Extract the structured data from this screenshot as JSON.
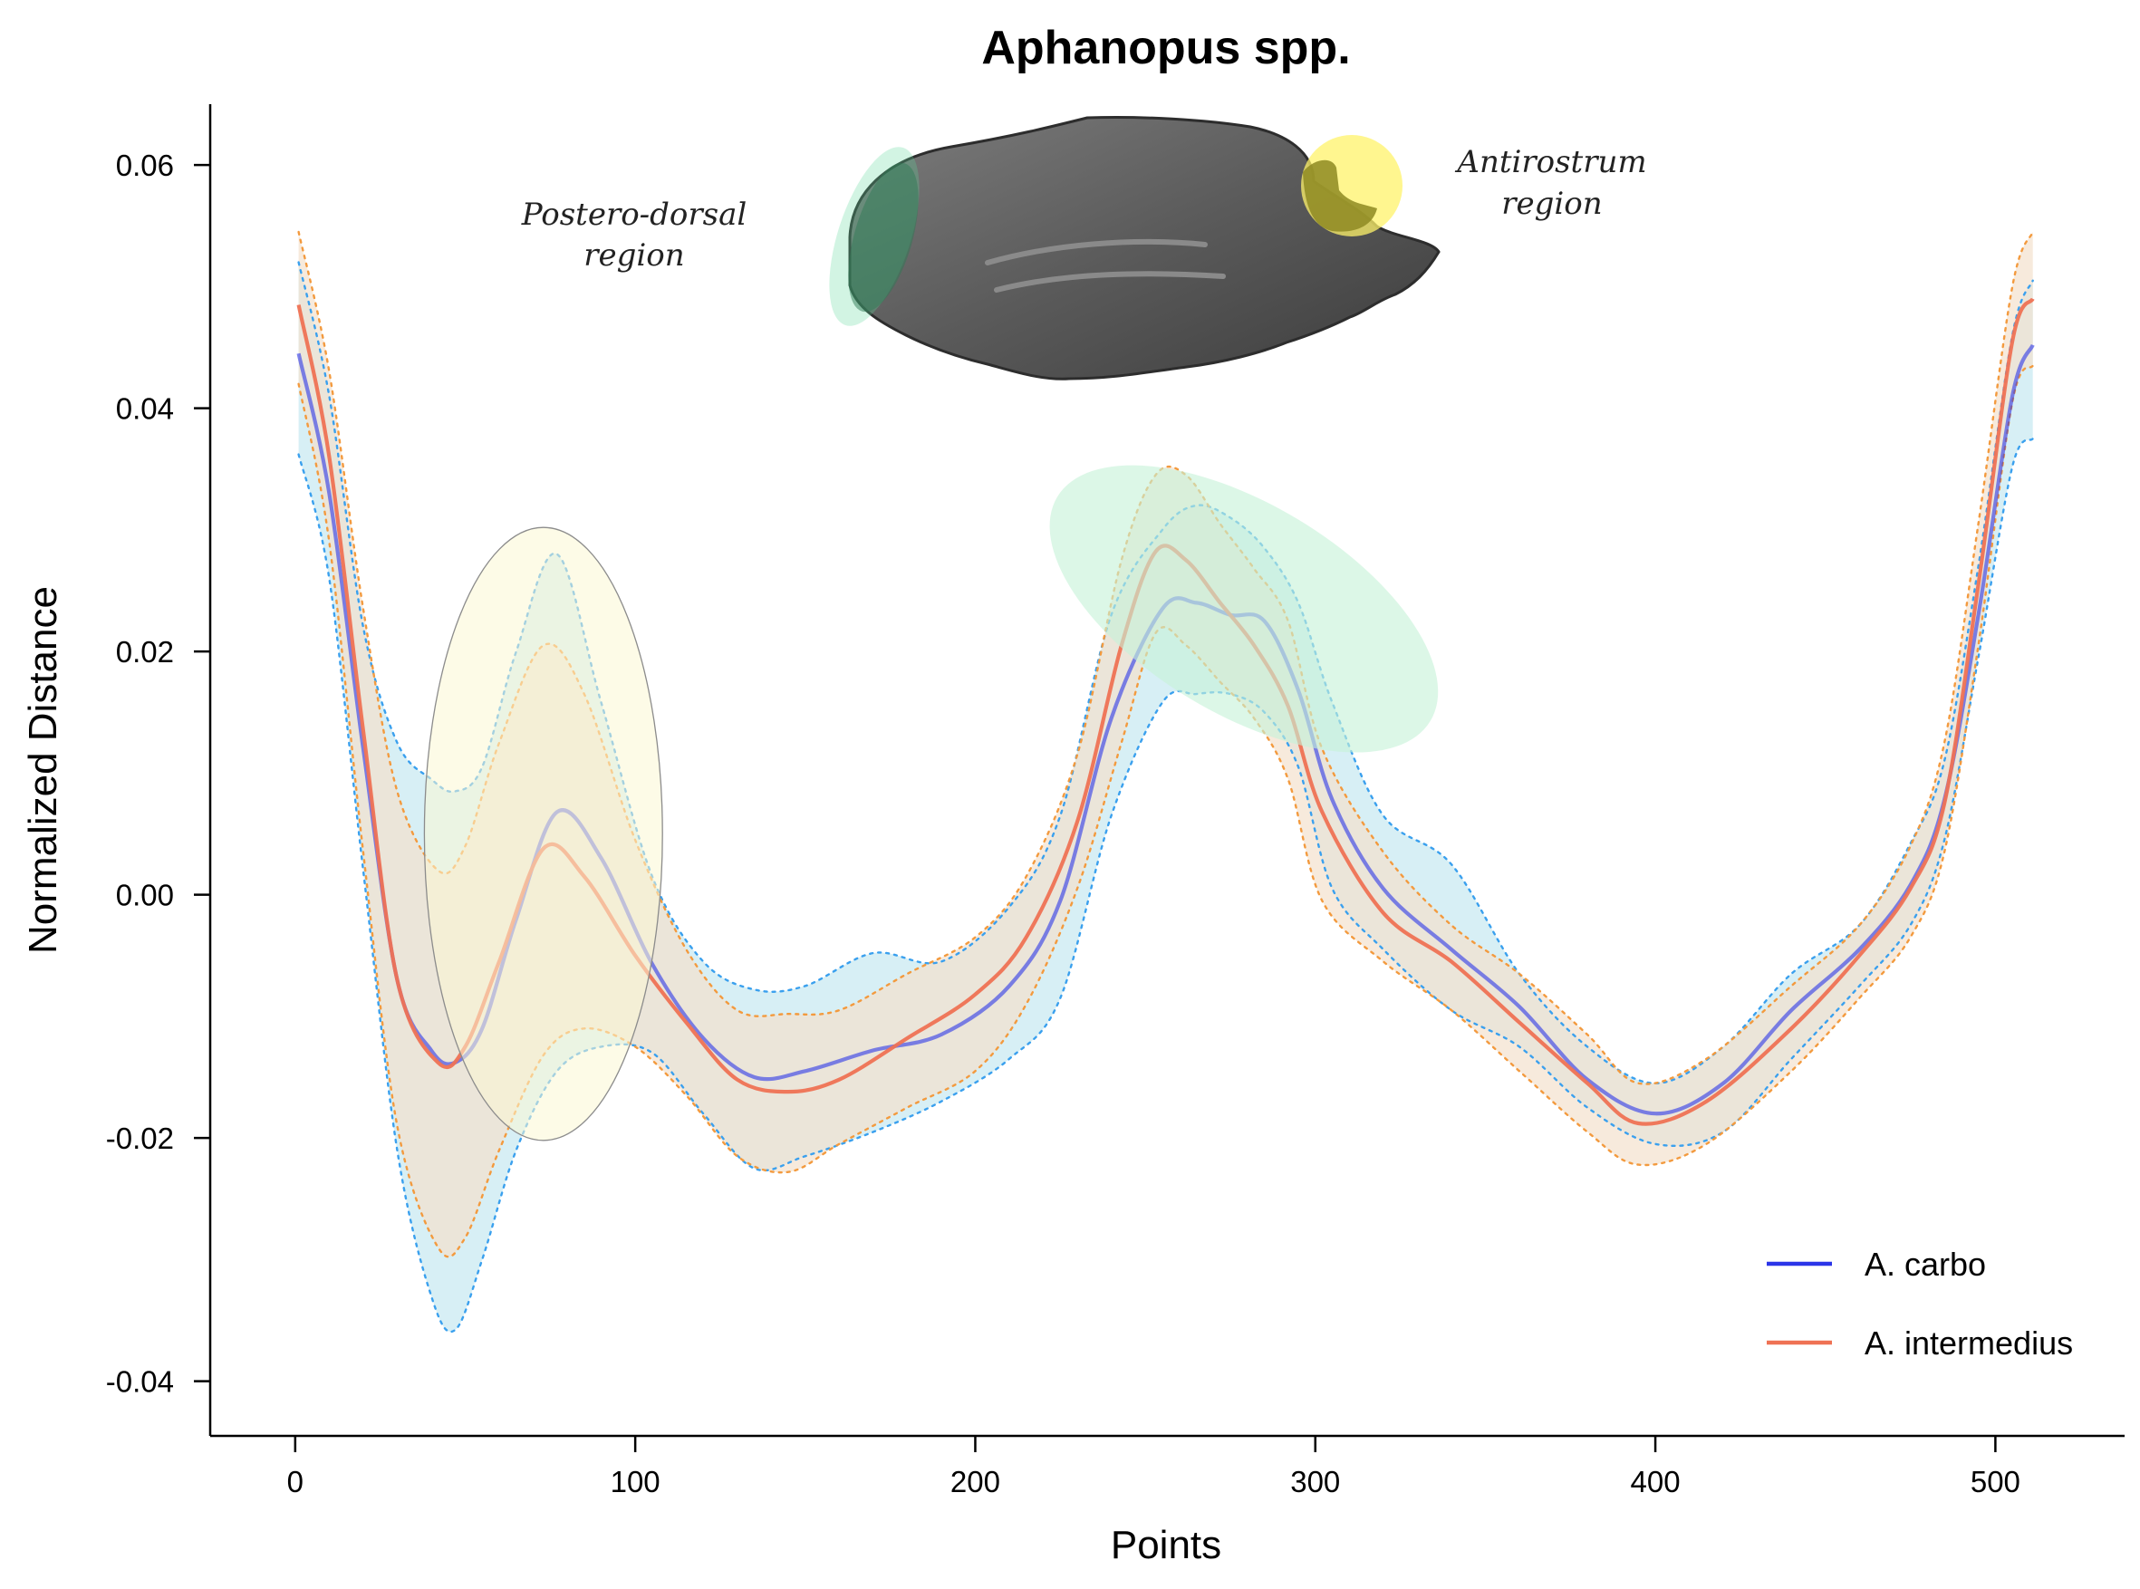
{
  "chart_data": {
    "type": "line",
    "title": "Aphanopus spp.",
    "xlabel": "Points",
    "ylabel": "Normalized Distance",
    "xlim": [
      -25,
      538
    ],
    "ylim": [
      -0.0445,
      0.065
    ],
    "x_ticks": [
      0,
      100,
      200,
      300,
      400,
      500
    ],
    "x_tick_labels": [
      "0",
      "100",
      "200",
      "300",
      "400",
      "500"
    ],
    "y_ticks": [
      -0.04,
      -0.02,
      0.0,
      0.02,
      0.04,
      0.06
    ],
    "y_tick_labels": [
      "-0.04",
      "-0.02",
      "0.00",
      "0.02",
      "0.04",
      "0.06"
    ],
    "grid": false,
    "legend_position": "bottom-right",
    "annotations": [
      {
        "text": "Postero-dorsal\nregion",
        "lines": [
          "Postero-dorsal",
          "region"
        ]
      },
      {
        "text": "Antirostrum\nregion",
        "lines": [
          "Antirostrum",
          "region"
        ]
      }
    ],
    "highlight_regions": [
      {
        "name": "postero-dorsal-highlight",
        "color": "#fbf8d4",
        "cx": 73,
        "cy": 0.005,
        "rx": 35,
        "ry": 0.0252,
        "rotation": 0
      },
      {
        "name": "mid-region-highlight",
        "color": "#c6f2d9",
        "cx": 279,
        "cy": 0.0235,
        "rx": 64,
        "ry": 0.0086,
        "rotation": 31
      }
    ],
    "series": [
      {
        "name": "A. carbo",
        "color": "#2b35e8",
        "ribbon_color": "#c9eaf1",
        "x": [
          1,
          10,
          20,
          30,
          40,
          47,
          55,
          65,
          77,
          90,
          105,
          120,
          135,
          150,
          170,
          190,
          210,
          225,
          240,
          255,
          265,
          275,
          285,
          295,
          305,
          320,
          340,
          360,
          380,
          400,
          420,
          440,
          460,
          475,
          485,
          495,
          505,
          511
        ],
        "y": [
          0.0445,
          0.033,
          0.012,
          -0.007,
          -0.0128,
          -0.0138,
          -0.011,
          -0.002,
          0.0068,
          0.003,
          -0.0057,
          -0.0118,
          -0.015,
          -0.0145,
          -0.0128,
          -0.0115,
          -0.0075,
          -0.0005,
          0.0145,
          0.0235,
          0.024,
          0.023,
          0.0225,
          0.0168,
          0.0078,
          0.0005,
          -0.0045,
          -0.0092,
          -0.0152,
          -0.018,
          -0.0155,
          -0.0095,
          -0.0045,
          0.0008,
          0.0078,
          0.023,
          0.041,
          0.0452
        ],
        "upper": [
          0.052,
          0.041,
          0.022,
          0.0125,
          0.0095,
          0.0085,
          0.0105,
          0.02,
          0.028,
          0.0158,
          0.0015,
          -0.0055,
          -0.0078,
          -0.0075,
          -0.0048,
          -0.0055,
          -0.001,
          0.0065,
          0.023,
          0.03,
          0.032,
          0.031,
          0.0285,
          0.024,
          0.0158,
          0.0065,
          0.0025,
          -0.0065,
          -0.0125,
          -0.0155,
          -0.0125,
          -0.0065,
          -0.0025,
          0.0042,
          0.011,
          0.027,
          0.046,
          0.0505
        ],
        "lower": [
          0.0362,
          0.026,
          0.002,
          -0.021,
          -0.033,
          -0.0358,
          -0.03,
          -0.021,
          -0.0145,
          -0.0125,
          -0.013,
          -0.018,
          -0.0225,
          -0.0215,
          -0.0195,
          -0.017,
          -0.0135,
          -0.0085,
          0.0065,
          0.0158,
          0.0165,
          0.0165,
          0.015,
          0.0105,
          0.0005,
          -0.0045,
          -0.0095,
          -0.0125,
          -0.0175,
          -0.0205,
          -0.0195,
          -0.0135,
          -0.0075,
          -0.0025,
          0.0045,
          0.0195,
          0.0352,
          0.0375
        ]
      },
      {
        "name": "A. intermedius",
        "color": "#ef7254",
        "ribbon_color": "#f3e1cd",
        "x": [
          1,
          10,
          20,
          30,
          42,
          50,
          60,
          73,
          85,
          100,
          115,
          130,
          145,
          160,
          180,
          200,
          215,
          230,
          243,
          253,
          262,
          272,
          282,
          292,
          302,
          320,
          340,
          360,
          380,
          395,
          415,
          440,
          460,
          475,
          485,
          495,
          505,
          511
        ],
        "y": [
          0.0485,
          0.036,
          0.0135,
          -0.007,
          -0.0138,
          -0.0125,
          -0.0055,
          0.0038,
          0.0015,
          -0.005,
          -0.0105,
          -0.0152,
          -0.0162,
          -0.0152,
          -0.0118,
          -0.0082,
          -0.0035,
          0.006,
          0.0205,
          0.0282,
          0.0275,
          0.024,
          0.0205,
          0.0155,
          0.0068,
          -0.0015,
          -0.0055,
          -0.0105,
          -0.0155,
          -0.0188,
          -0.017,
          -0.011,
          -0.005,
          0.0005,
          0.0075,
          0.0255,
          0.0455,
          0.049
        ],
        "upper": [
          0.0545,
          0.043,
          0.0235,
          0.0085,
          0.002,
          0.004,
          0.0125,
          0.0205,
          0.0165,
          0.0045,
          -0.0045,
          -0.0095,
          -0.0098,
          -0.0095,
          -0.0065,
          -0.0035,
          0.0015,
          0.0115,
          0.0275,
          0.0345,
          0.0345,
          0.0305,
          0.0268,
          0.0225,
          0.012,
          0.0035,
          -0.0025,
          -0.0065,
          -0.0115,
          -0.0155,
          -0.0135,
          -0.0075,
          -0.0025,
          0.004,
          0.0125,
          0.0305,
          0.05,
          0.0545
        ],
        "lower": [
          0.042,
          0.029,
          0.0035,
          -0.019,
          -0.029,
          -0.0282,
          -0.021,
          -0.0132,
          -0.011,
          -0.0125,
          -0.0165,
          -0.0215,
          -0.0228,
          -0.0205,
          -0.0175,
          -0.0145,
          -0.009,
          0.0005,
          0.0125,
          0.0215,
          0.0205,
          0.0175,
          0.0145,
          0.0095,
          -0.0005,
          -0.0055,
          -0.0095,
          -0.0145,
          -0.0195,
          -0.0222,
          -0.0205,
          -0.0145,
          -0.0085,
          -0.0035,
          0.0035,
          0.0205,
          0.0405,
          0.0435
        ]
      }
    ]
  },
  "image": {
    "description_name": "otolith-image"
  }
}
